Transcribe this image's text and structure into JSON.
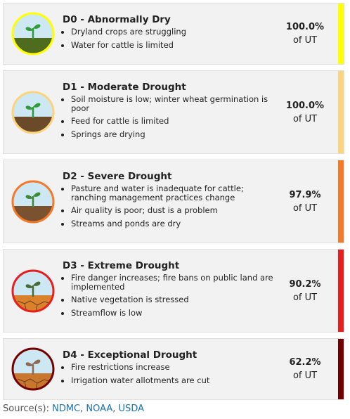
{
  "levels": [
    {
      "title": "D0 - Abnormally Dry",
      "bullets": [
        "Dryland crops are struggling",
        "Water for cattle is limited"
      ],
      "percent": "100.0%",
      "unit": "of UT",
      "color": "#ffff00"
    },
    {
      "title": "D1 - Moderate Drought",
      "bullets": [
        "Soil moisture is low; winter wheat germination is poor",
        "Feed for cattle is limited",
        "Springs are drying"
      ],
      "percent": "100.0%",
      "unit": "of UT",
      "color": "#fcd37f"
    },
    {
      "title": "D2 - Severe Drought",
      "bullets": [
        "Pasture and water is inadequate for cattle; ranching management practices change",
        "Air quality is poor; dust is a problem",
        "Streams and ponds are dry"
      ],
      "percent": "97.9%",
      "unit": "of UT",
      "color": "#f47a2a"
    },
    {
      "title": "D3 - Extreme Drought",
      "bullets": [
        "Fire danger increases; fire bans on public land are implemented",
        "Native vegetation is stressed",
        "Streamflow is low"
      ],
      "percent": "90.2%",
      "unit": "of UT",
      "color": "#e81e1e"
    },
    {
      "title": "D4 - Exceptional Drought",
      "bullets": [
        "Fire restrictions increase",
        "Irrigation water allotments are cut"
      ],
      "percent": "62.2%",
      "unit": "of UT",
      "color": "#730000"
    }
  ],
  "source": {
    "label": "Source(s):",
    "links": [
      "NDMC",
      "NOAA",
      "USDA"
    ],
    "separator": ", "
  }
}
